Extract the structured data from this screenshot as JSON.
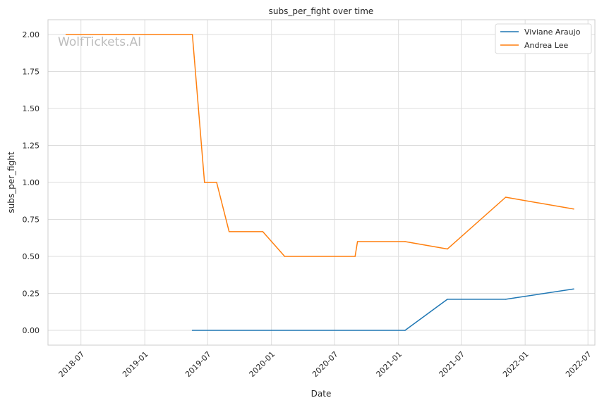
{
  "chart_data": {
    "type": "line",
    "title": "subs_per_fight over time",
    "xlabel": "Date",
    "ylabel": "subs_per_fight",
    "watermark": "WolfTickets.AI",
    "x_type": "date",
    "xlim": [
      "2018-03-28",
      "2022-07-21"
    ],
    "ylim": [
      -0.1,
      2.1
    ],
    "x_ticks": [
      {
        "date": "2018-07-01",
        "label": "2018-07"
      },
      {
        "date": "2019-01-01",
        "label": "2019-01"
      },
      {
        "date": "2019-07-01",
        "label": "2019-07"
      },
      {
        "date": "2020-01-01",
        "label": "2020-01"
      },
      {
        "date": "2020-07-01",
        "label": "2020-07"
      },
      {
        "date": "2021-01-01",
        "label": "2021-01"
      },
      {
        "date": "2021-07-01",
        "label": "2021-07"
      },
      {
        "date": "2022-01-01",
        "label": "2022-01"
      },
      {
        "date": "2022-07-01",
        "label": "2022-07"
      }
    ],
    "y_ticks": [
      0.0,
      0.25,
      0.5,
      0.75,
      1.0,
      1.25,
      1.5,
      1.75,
      2.0
    ],
    "y_tick_labels": [
      "0.00",
      "0.25",
      "0.50",
      "0.75",
      "1.00",
      "1.25",
      "1.50",
      "1.75",
      "2.00"
    ],
    "grid": true,
    "legend_position": "top-right",
    "series": [
      {
        "name": "Viviane Araujo",
        "color": "#1f77b4",
        "points": [
          {
            "x": "2019-05-18",
            "y": 0.0
          },
          {
            "x": "2021-01-20",
            "y": 0.0
          },
          {
            "x": "2021-05-22",
            "y": 0.21
          },
          {
            "x": "2021-11-06",
            "y": 0.21
          },
          {
            "x": "2022-05-21",
            "y": 0.28
          }
        ]
      },
      {
        "name": "Andrea Lee",
        "color": "#ff7f0e",
        "points": [
          {
            "x": "2018-05-19",
            "y": 2.0
          },
          {
            "x": "2019-05-18",
            "y": 2.0
          },
          {
            "x": "2019-06-22",
            "y": 1.0
          },
          {
            "x": "2019-07-27",
            "y": 1.0
          },
          {
            "x": "2019-09-01",
            "y": 0.667
          },
          {
            "x": "2019-12-07",
            "y": 0.667
          },
          {
            "x": "2020-02-08",
            "y": 0.5
          },
          {
            "x": "2020-08-29",
            "y": 0.5
          },
          {
            "x": "2020-09-05",
            "y": 0.6
          },
          {
            "x": "2021-01-20",
            "y": 0.6
          },
          {
            "x": "2021-05-22",
            "y": 0.55
          },
          {
            "x": "2021-11-06",
            "y": 0.9
          },
          {
            "x": "2022-05-21",
            "y": 0.82
          }
        ]
      }
    ]
  }
}
